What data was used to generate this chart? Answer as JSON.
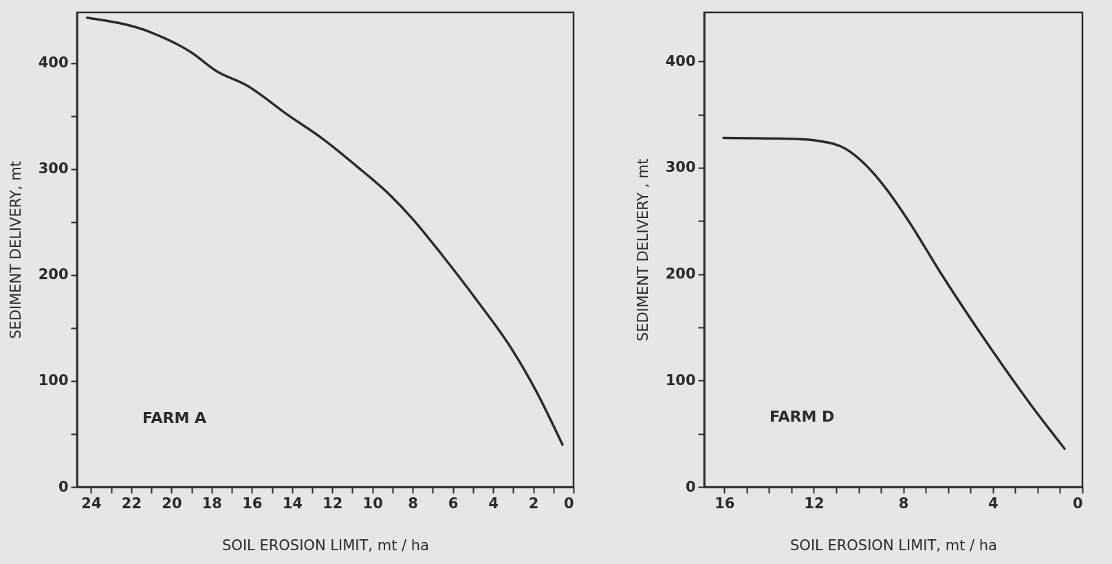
{
  "chart_data": [
    {
      "type": "line",
      "xlabel": "SOIL EROSION LIMIT,    mt / ha",
      "ylabel": "SEDIMENT DELIVERY,   mt",
      "annotations": [
        "FARM  A"
      ],
      "x": [
        24.2,
        21.0,
        19.0,
        17.8,
        16.25,
        14.2,
        12.5,
        10.8,
        9.1,
        8.05,
        6.5,
        4.8,
        3.1,
        1.9,
        0.55
      ],
      "series": [
        {
          "color": "#2b2b2b",
          "values": [
            443,
            429,
            410,
            393,
            379,
            351,
            329,
            303,
            275,
            254,
            218,
            176,
            131,
            92,
            40
          ]
        }
      ],
      "xlim": [
        24.7,
        0
      ],
      "xticks": [
        24,
        {
          "value": 23,
          "label": null
        },
        22,
        {
          "value": 21,
          "label": null
        },
        20,
        {
          "value": 19,
          "label": null
        },
        18,
        {
          "value": 17,
          "label": null
        },
        16,
        {
          "value": 15,
          "label": null
        },
        14,
        {
          "value": 13,
          "label": null
        },
        12,
        {
          "value": 11,
          "label": null
        },
        10,
        {
          "value": 9,
          "label": null
        },
        8,
        {
          "value": 7,
          "label": null
        },
        6,
        {
          "value": 5,
          "label": null
        },
        4,
        {
          "value": 3,
          "label": null
        },
        2,
        {
          "value": 1,
          "label": null
        },
        0
      ],
      "ylim": [
        0,
        448
      ],
      "yticks": [
        0,
        {
          "value": 50,
          "label": null
        },
        100,
        {
          "value": 150,
          "label": null
        },
        200,
        {
          "value": 250,
          "label": null
        },
        300,
        {
          "value": 350,
          "label": null
        },
        400
      ]
    },
    {
      "type": "line",
      "xlabel": "SOIL EROSION LIMIT,    mt / ha",
      "ylabel": "SEDIMENT DELIVERY ,  mt",
      "annotations": [
        "FARM  D"
      ],
      "x": [
        16.04,
        12.86,
        11.73,
        10.6,
        9.75,
        8.76,
        7.77,
        6.36,
        4.38,
        2.26,
        0.8
      ],
      "series": [
        {
          "color": "#2b2b2b",
          "values": [
            328,
            327,
            325,
            318,
            304,
            280,
            250,
            202,
            139,
            76,
            36
          ]
        }
      ],
      "xlim": [
        16.9,
        0
      ],
      "xticks": [
        16,
        {
          "value": 15,
          "label": null
        },
        {
          "value": 14,
          "label": null
        },
        {
          "value": 13,
          "label": null
        },
        12,
        {
          "value": 11,
          "label": null
        },
        {
          "value": 10,
          "label": null
        },
        {
          "value": 9,
          "label": null
        },
        8,
        {
          "value": 7,
          "label": null
        },
        {
          "value": 6,
          "label": null
        },
        {
          "value": 5,
          "label": null
        },
        4,
        {
          "value": 3,
          "label": null
        },
        {
          "value": 2,
          "label": null
        },
        {
          "value": 1,
          "label": null
        },
        0
      ],
      "ylim": [
        0,
        446
      ],
      "yticks": [
        0,
        {
          "value": 50,
          "label": null
        },
        100,
        {
          "value": 150,
          "label": null
        },
        200,
        {
          "value": 250,
          "label": null
        },
        300,
        {
          "value": 350,
          "label": null
        },
        400
      ]
    }
  ]
}
